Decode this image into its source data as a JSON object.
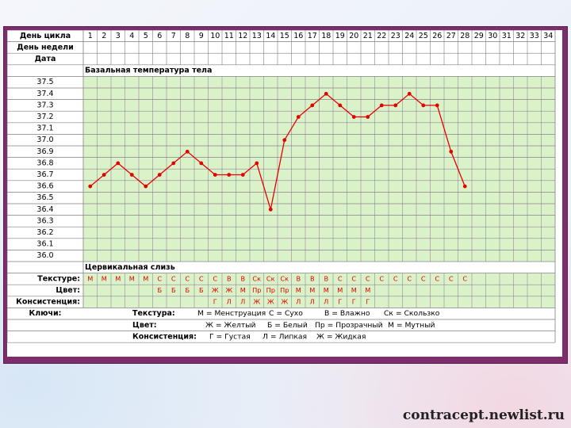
{
  "labels": {
    "cycle_day": "День цикла",
    "weekday": "День недели",
    "date": "Дата",
    "bbt": "Базальная температура тела",
    "mucus": "Цервикальная слизь",
    "texture": "Текстуре:",
    "color": "Цвет:",
    "consistency": "Консистенция:",
    "keys": "Ключи:"
  },
  "days": [
    "1",
    "2",
    "3",
    "4",
    "5",
    "6",
    "7",
    "8",
    "9",
    "10",
    "11",
    "12",
    "13",
    "14",
    "15",
    "16",
    "17",
    "18",
    "19",
    "20",
    "21",
    "22",
    "23",
    "24",
    "25",
    "26",
    "27",
    "28",
    "29",
    "30",
    "31",
    "32",
    "33",
    "34"
  ],
  "mucus_rows": {
    "texture": [
      "М",
      "М",
      "М",
      "М",
      "М",
      "С",
      "С",
      "С",
      "С",
      "С",
      "В",
      "В",
      "Ск",
      "Ск",
      "Ск",
      "В",
      "В",
      "В",
      "С",
      "С",
      "С",
      "С",
      "С",
      "С",
      "С",
      "С",
      "С",
      "С",
      "",
      "",
      "",
      "",
      "",
      ""
    ],
    "color": [
      "",
      "",
      "",
      "",
      "",
      "Б",
      "Б",
      "Б",
      "Б",
      "Ж",
      "Ж",
      "М",
      "Пр",
      "Пр",
      "Пр",
      "М",
      "М",
      "М",
      "М",
      "М",
      "М",
      "",
      "",
      "",
      "",
      "",
      "",
      "",
      "",
      "",
      "",
      "",
      "",
      ""
    ],
    "consistency": [
      "",
      "",
      "",
      "",
      "",
      "",
      "",
      "",
      "",
      "Г",
      "Л",
      "Л",
      "Ж",
      "Ж",
      "Ж",
      "Л",
      "Л",
      "Л",
      "Г",
      "Г",
      "Г",
      "",
      "",
      "",
      "",
      "",
      "",
      "",
      "",
      "",
      "",
      "",
      "",
      ""
    ]
  },
  "keys": {
    "texture_title": "Текстура:",
    "texture_items": [
      "М = Менструация",
      "С = Сухо",
      "В = Влажно",
      "Ск = Скользко"
    ],
    "color_title": "Цвет:",
    "color_items": [
      "Ж = Желтый",
      "Б = Белый",
      "Пр = Прозрачный",
      "М = Мутный"
    ],
    "consistency_title": "Консистенция:",
    "consistency_items": [
      "Г = Густая",
      "Л = Липкая",
      "Ж = Жидкая"
    ]
  },
  "watermark": "contracept.newlist.ru",
  "colors": {
    "line": "#e60000",
    "cell": "#d9f2c7",
    "grid": "#7f7f7f",
    "border": "#7d2d6b"
  },
  "chart_data": {
    "type": "line",
    "title": "Базальная температура тела",
    "xlabel": "День цикла",
    "ylabel": "",
    "x": [
      1,
      2,
      3,
      4,
      5,
      6,
      7,
      8,
      9,
      10,
      11,
      12,
      13,
      14,
      15,
      16,
      17,
      18,
      19,
      20,
      21,
      22,
      23,
      24,
      25,
      26,
      27,
      28
    ],
    "series": [
      {
        "values": [
          36.6,
          36.7,
          36.8,
          36.7,
          36.6,
          36.7,
          36.8,
          36.9,
          36.8,
          36.7,
          36.7,
          36.7,
          36.8,
          36.4,
          37.0,
          37.2,
          37.3,
          37.4,
          37.3,
          37.2,
          37.2,
          37.3,
          37.3,
          37.4,
          37.3,
          37.3,
          36.9,
          36.6
        ]
      }
    ],
    "y_ticks": [
      "37.5",
      "37.4",
      "37.3",
      "37.2",
      "37.1",
      "37.0",
      "36.9",
      "36.8",
      "36.7",
      "36.6",
      "36.5",
      "36.4",
      "36.3",
      "36.2",
      "36.1",
      "36.0"
    ],
    "ylim": [
      36.0,
      37.5
    ],
    "grid": true
  }
}
